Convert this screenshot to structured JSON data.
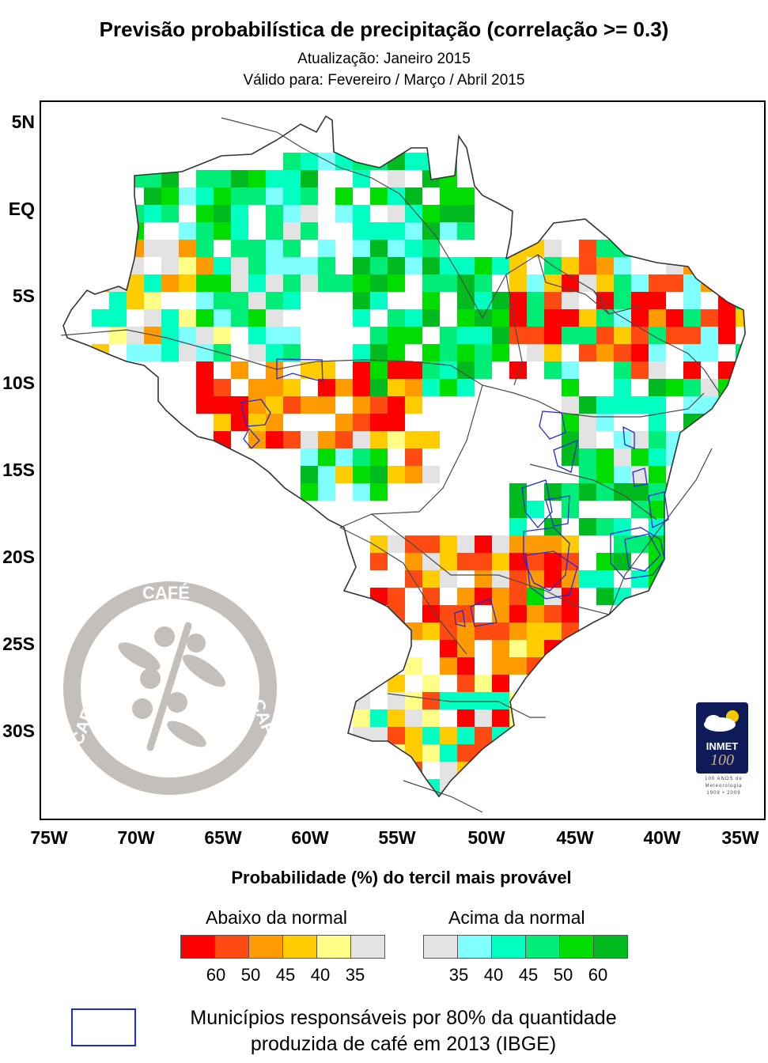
{
  "title": "Previsão probabilística de precipitação (correlação >= 0.3)",
  "subtitle_update": "Atualização: Janeiro 2015",
  "subtitle_valid": "Válido para: Fevereiro / Março / Abril 2015",
  "map": {
    "lat_labels": [
      "5N",
      "EQ",
      "5S",
      "10S",
      "15S",
      "20S",
      "25S",
      "30S"
    ],
    "lon_labels": [
      "75W",
      "70W",
      "65W",
      "60W",
      "55W",
      "50W",
      "45W",
      "40W",
      "35W"
    ],
    "colors": {
      "frame": "#000000",
      "border": "#4a4a4a",
      "coffee_outline": "#1d2bd8",
      "no_forecast": "#ffffff"
    }
  },
  "legend": {
    "title": "Probabilidade (%) do tercil mais provável",
    "below_label": "Abaixo da normal",
    "above_label": "Acima da normal",
    "below_colors": [
      "#ff0000",
      "#ff4a12",
      "#ff9a00",
      "#ffcc00",
      "#ffff88",
      "#e3e3e3"
    ],
    "above_colors": [
      "#e3e3e3",
      "#80ffff",
      "#00ffc0",
      "#00ee78",
      "#00dd00",
      "#00bb20"
    ],
    "below_ticks": [
      "60",
      "50",
      "45",
      "40",
      "35"
    ],
    "above_ticks": [
      "35",
      "40",
      "45",
      "50",
      "60"
    ],
    "municipalities_line1": "Municípios responsáveis por 80% da quantidade",
    "municipalities_line2": "produzida de café em 2013 (IBGE)"
  },
  "cafe_seal": {
    "text": "CAFÉ",
    "color": "#c4bfbb"
  },
  "inmet_logo": {
    "name": "INMET",
    "number": "100",
    "caption_line1": "100 ANOS de",
    "caption_line2": "Meteorologia",
    "caption_line3": "1909 • 2009"
  }
}
